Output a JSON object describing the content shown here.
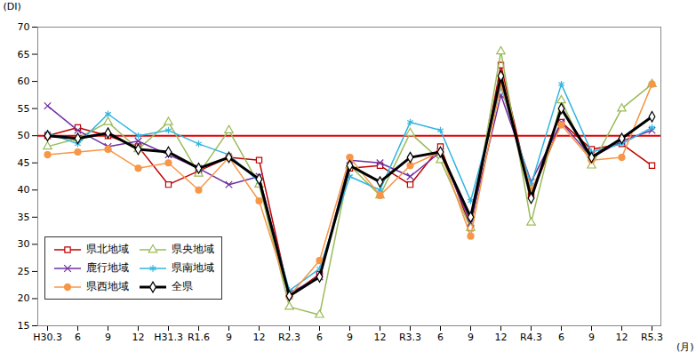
{
  "chart_data": {
    "type": "line",
    "categories": [
      "H30.3",
      "6",
      "9",
      "12",
      "H31.3",
      "R1.6",
      "9",
      "12",
      "R2.3",
      "6",
      "9",
      "12",
      "R3.3",
      "6",
      "9",
      "12",
      "R4.3",
      "6",
      "9",
      "12",
      "R5.3"
    ],
    "x_label": "(月)",
    "y_label": "(DI)",
    "ylim": [
      15,
      70
    ],
    "yticks": [
      15,
      20,
      25,
      30,
      35,
      40,
      45,
      50,
      55,
      60,
      65,
      70
    ],
    "grid": false,
    "legend": "bottom-left",
    "hlines": [
      {
        "value": 50,
        "color": "#e00000"
      }
    ],
    "series": [
      {
        "name": "県北地域",
        "color": "#c00000",
        "marker": "square",
        "line_style": "solid",
        "values": [
          50,
          51.5,
          50,
          48,
          41,
          43.5,
          46,
          45.5,
          20.5,
          24.5,
          44,
          44.5,
          41,
          48,
          33,
          63,
          39,
          52.5,
          47.5,
          48.5,
          44.5
        ]
      },
      {
        "name": "県央地域",
        "color": "#9bbb59",
        "marker": "triangle",
        "line_style": "solid",
        "values": [
          48,
          49.5,
          52.5,
          47.5,
          52.5,
          43,
          51,
          41,
          18.5,
          17,
          44.5,
          39,
          50.5,
          45.5,
          33,
          65.5,
          34,
          56.5,
          44.5,
          55,
          59.5
        ]
      },
      {
        "name": "鹿行地域",
        "color": "#7030a0",
        "marker": "times",
        "line_style": "solid",
        "values": [
          55.5,
          51,
          48,
          49,
          46.5,
          44,
          41,
          42.5,
          21,
          24,
          45.5,
          45,
          42.5,
          47,
          34,
          57.5,
          41.5,
          52.5,
          46,
          49,
          51
        ]
      },
      {
        "name": "県南地域",
        "color": "#31b5e0",
        "marker": "asterisk",
        "line_style": "solid",
        "values": [
          50.5,
          48.5,
          54,
          50,
          51,
          48.5,
          46.5,
          41.5,
          21.5,
          25.5,
          42.5,
          40,
          52.5,
          51,
          38,
          59,
          41,
          59.5,
          47,
          48.5,
          51.5
        ]
      },
      {
        "name": "県西地域",
        "color": "#f79646",
        "marker": "circle",
        "line_style": "solid",
        "values": [
          46.5,
          47,
          47.5,
          44,
          45,
          40,
          46,
          38,
          20.5,
          27,
          46,
          39,
          44.5,
          47,
          31.5,
          59.5,
          40,
          52,
          45.5,
          46,
          59.5
        ]
      },
      {
        "name": "全県",
        "color": "#000000",
        "marker": "diamond",
        "line_style": "thick",
        "values": [
          50,
          49.5,
          50.5,
          47.5,
          47,
          44,
          46,
          42,
          20.5,
          24,
          44.5,
          41.5,
          46,
          47,
          35,
          61,
          38.5,
          55,
          46,
          49.5,
          53.5
        ]
      }
    ]
  }
}
